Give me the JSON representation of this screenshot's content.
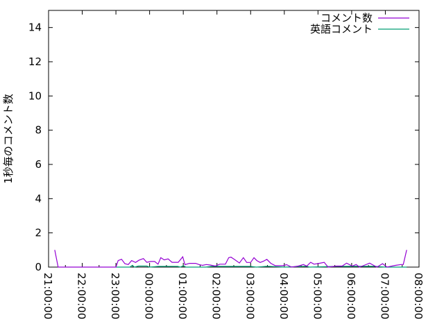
{
  "chart_data": {
    "type": "line",
    "title": "",
    "xlabel": "",
    "ylabel": "1秒毎のコメント数",
    "xlim": [
      "21:00:00",
      "08:00:00"
    ],
    "ylim": [
      0,
      15
    ],
    "x_ticks": [
      "21:00:00",
      "22:00:00",
      "23:00:00",
      "00:00:00",
      "01:00:00",
      "02:00:00",
      "03:00:00",
      "04:00:00",
      "05:00:00",
      "06:00:00",
      "07:00:00",
      "08:00:00"
    ],
    "y_ticks": [
      "0",
      "2",
      "4",
      "6",
      "8",
      "10",
      "12",
      "14"
    ],
    "grid": false,
    "legend": "top-right",
    "series": [
      {
        "name": "コメント数",
        "color": "#9400d3",
        "points": [
          [
            "21:11",
            1.0
          ],
          [
            "21:17",
            0
          ],
          [
            "23:00",
            0
          ],
          [
            "23:04",
            0.38
          ],
          [
            "23:10",
            0.46
          ],
          [
            "23:16",
            0.2
          ],
          [
            "23:22",
            0.15
          ],
          [
            "23:28",
            0.38
          ],
          [
            "23:35",
            0.27
          ],
          [
            "23:41",
            0.4
          ],
          [
            "23:49",
            0.5
          ],
          [
            "23:55",
            0.28
          ],
          [
            "00:02",
            0.33
          ],
          [
            "00:09",
            0.33
          ],
          [
            "00:15",
            0.17
          ],
          [
            "00:20",
            0.55
          ],
          [
            "00:26",
            0.42
          ],
          [
            "00:33",
            0.48
          ],
          [
            "00:40",
            0.28
          ],
          [
            "00:51",
            0.28
          ],
          [
            "00:59",
            0.6
          ],
          [
            "01:03",
            0.14
          ],
          [
            "01:11",
            0.22
          ],
          [
            "01:22",
            0.22
          ],
          [
            "01:28",
            0.15
          ],
          [
            "01:34",
            0.1
          ],
          [
            "01:41",
            0.15
          ],
          [
            "01:48",
            0.12
          ],
          [
            "01:57",
            0.06
          ],
          [
            "02:05",
            0.17
          ],
          [
            "02:15",
            0.17
          ],
          [
            "02:21",
            0.55
          ],
          [
            "02:25",
            0.58
          ],
          [
            "02:31",
            0.45
          ],
          [
            "02:40",
            0.24
          ],
          [
            "02:47",
            0.55
          ],
          [
            "02:53",
            0.27
          ],
          [
            "03:00",
            0.27
          ],
          [
            "03:06",
            0.55
          ],
          [
            "03:11",
            0.38
          ],
          [
            "03:17",
            0.27
          ],
          [
            "03:23",
            0.35
          ],
          [
            "03:29",
            0.45
          ],
          [
            "03:36",
            0.22
          ],
          [
            "03:44",
            0.08
          ],
          [
            "03:57",
            0.08
          ],
          [
            "04:04",
            0.14
          ],
          [
            "04:13",
            0
          ],
          [
            "04:25",
            0.06
          ],
          [
            "04:34",
            0.15
          ],
          [
            "04:40",
            0.06
          ],
          [
            "04:47",
            0.28
          ],
          [
            "04:53",
            0.17
          ],
          [
            "05:02",
            0.22
          ],
          [
            "05:11",
            0.28
          ],
          [
            "05:18",
            0
          ],
          [
            "05:33",
            0.06
          ],
          [
            "05:43",
            0.06
          ],
          [
            "05:51",
            0.23
          ],
          [
            "06:01",
            0.06
          ],
          [
            "06:08",
            0.15
          ],
          [
            "06:14",
            0
          ],
          [
            "06:22",
            0.1
          ],
          [
            "06:32",
            0.23
          ],
          [
            "06:38",
            0.12
          ],
          [
            "06:45",
            0
          ],
          [
            "06:55",
            0.2
          ],
          [
            "07:03",
            0
          ],
          [
            "07:18",
            0.1
          ],
          [
            "07:28",
            0.15
          ],
          [
            "07:32",
            0.15
          ],
          [
            "07:38",
            1.0
          ]
        ]
      },
      {
        "name": "英語コメント",
        "color": "#009e73",
        "points": [
          [
            "23:00",
            0
          ],
          [
            "23:25",
            0
          ],
          [
            "23:29",
            0.1
          ],
          [
            "23:33",
            0
          ],
          [
            "23:40",
            0.06
          ],
          [
            "23:55",
            0.06
          ],
          [
            "00:00",
            0
          ],
          [
            "00:15",
            0.04
          ],
          [
            "00:50",
            0.04
          ],
          [
            "00:55",
            0
          ],
          [
            "01:00",
            0.08
          ],
          [
            "01:05",
            0
          ],
          [
            "01:40",
            0
          ],
          [
            "01:50",
            0.04
          ],
          [
            "03:00",
            0.04
          ],
          [
            "03:10",
            0
          ],
          [
            "03:30",
            0.05
          ],
          [
            "04:00",
            0
          ],
          [
            "04:40",
            0.05
          ],
          [
            "04:45",
            0
          ],
          [
            "05:30",
            0.04
          ],
          [
            "06:40",
            0.05
          ],
          [
            "07:00",
            0
          ],
          [
            "07:38",
            0
          ]
        ]
      }
    ]
  }
}
